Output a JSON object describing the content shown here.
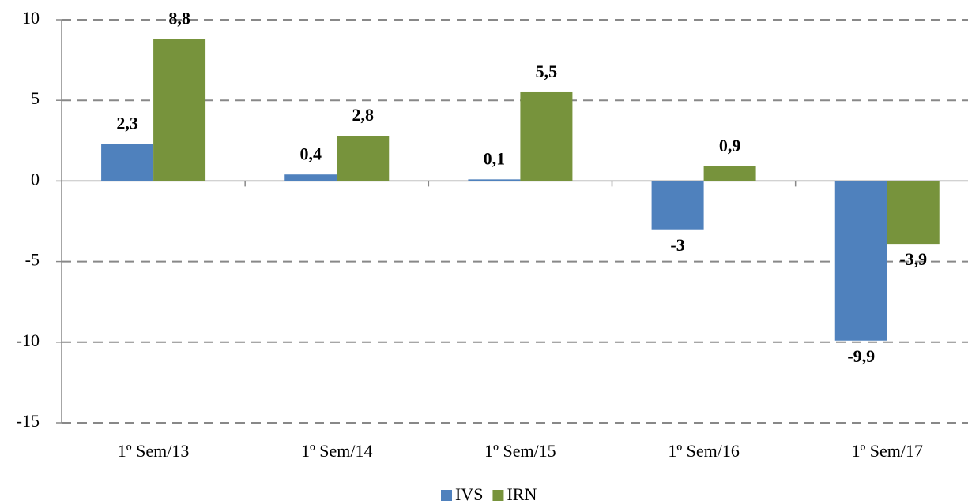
{
  "chart_data": {
    "type": "bar",
    "categories": [
      "1º Sem/13",
      "1º Sem/14",
      "1º Sem/15",
      "1º Sem/16",
      "1º Sem/17"
    ],
    "series": [
      {
        "name": "IVS",
        "color": "#4f81bd",
        "values": [
          2.3,
          0.4,
          0.1,
          -3,
          -9.9
        ],
        "value_labels": [
          "2,3",
          "0,4",
          "0,1",
          "-3",
          "-9,9"
        ]
      },
      {
        "name": "IRN",
        "color": "#77933c",
        "values": [
          8.8,
          2.8,
          5.5,
          0.9,
          -3.9
        ],
        "value_labels": [
          "8,8",
          "2,8",
          "5,5",
          "0,9",
          "-3,9"
        ]
      }
    ],
    "ylim": [
      -15,
      10
    ],
    "yticks": [
      -15,
      -10,
      -5,
      0,
      5,
      10
    ],
    "grid": true,
    "legend": "bottom"
  }
}
